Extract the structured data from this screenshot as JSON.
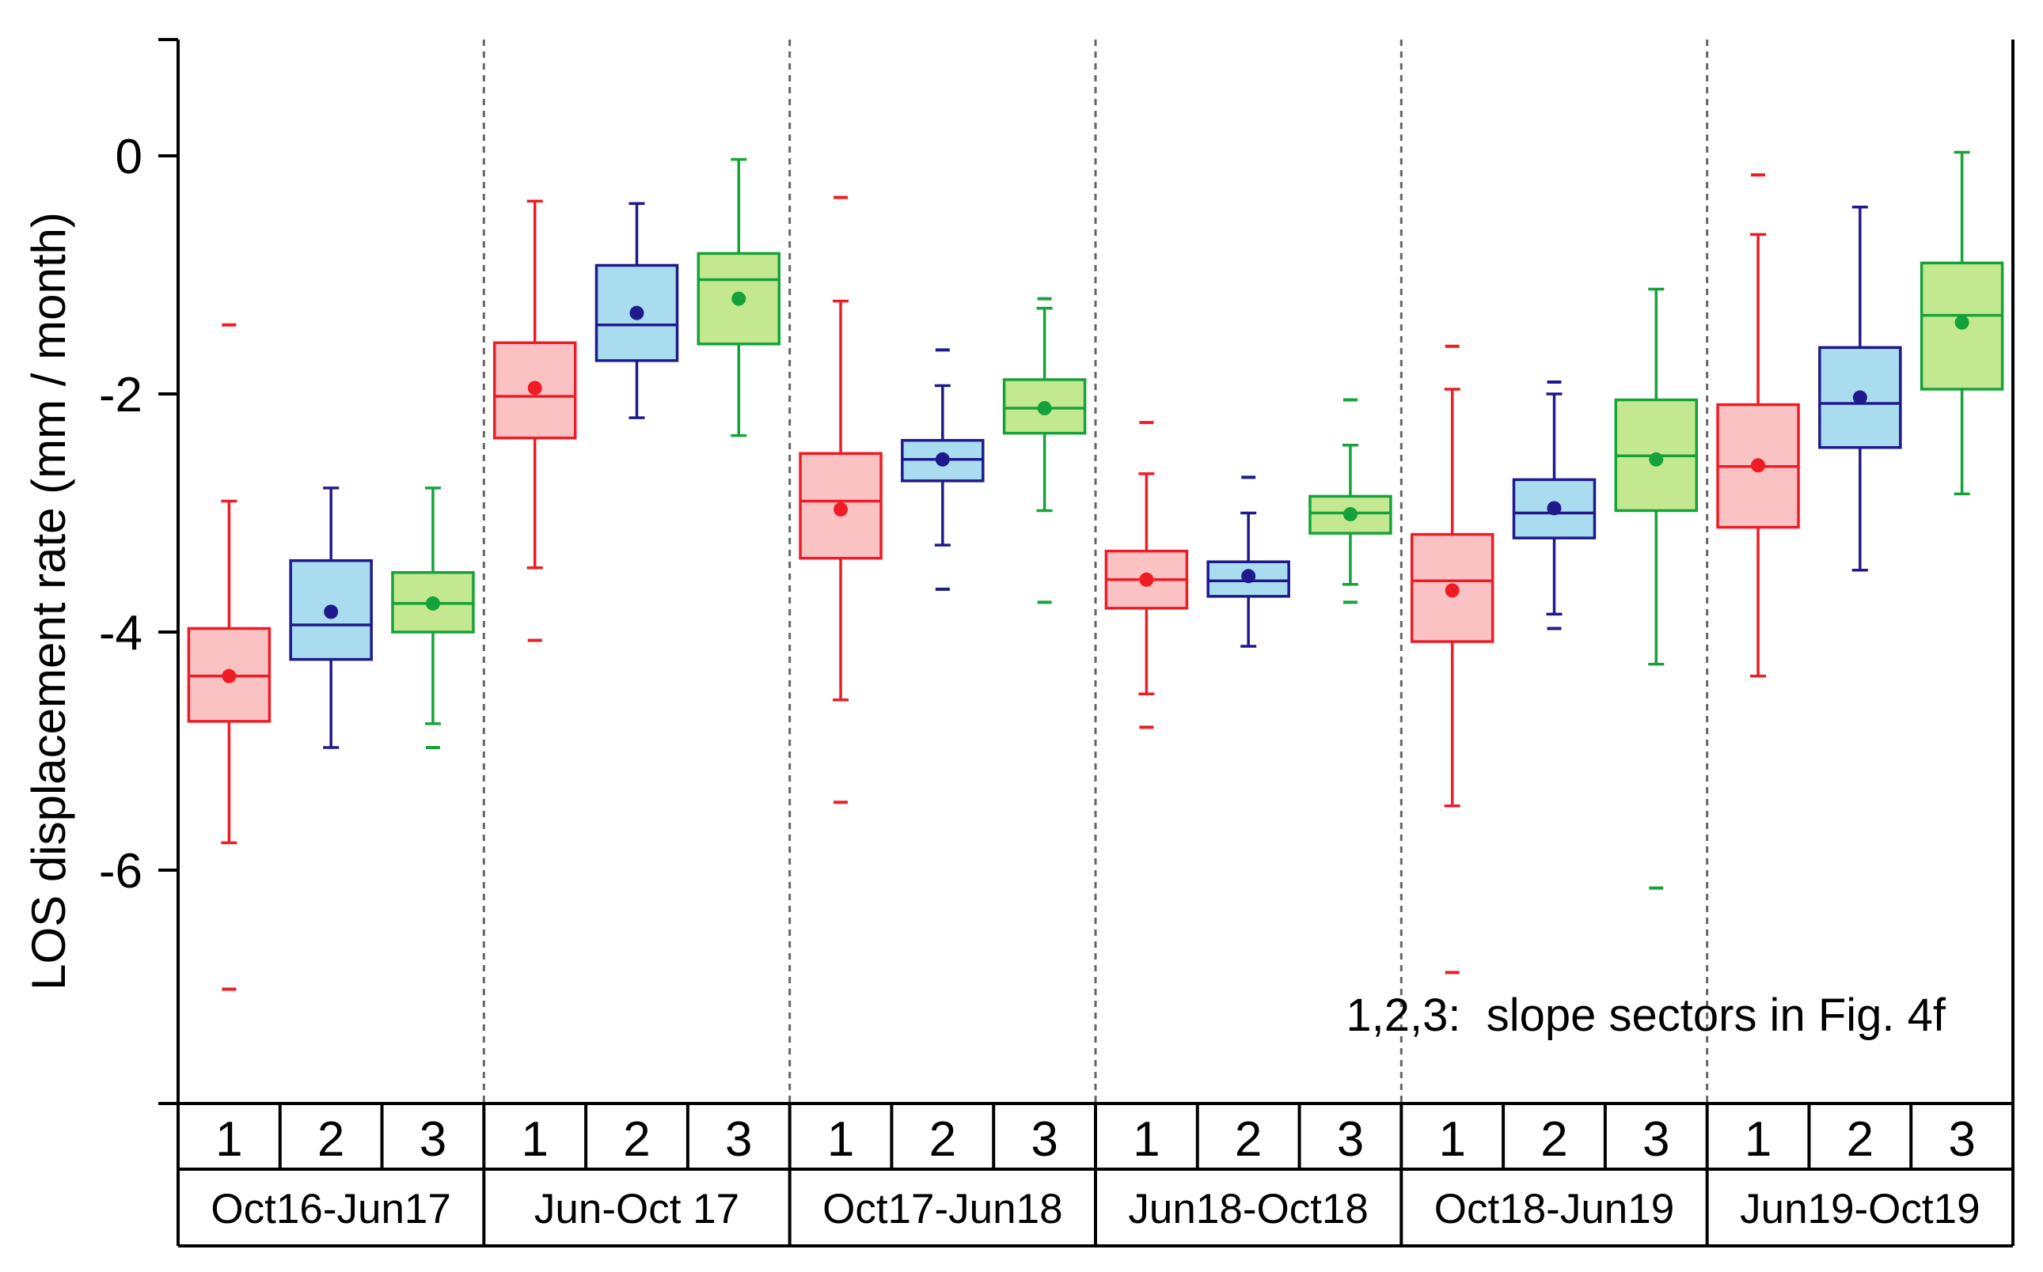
{
  "chart_data": {
    "type": "boxplot",
    "title": "",
    "xlabel": "",
    "ylabel": "LOS displacement rate (mm / month)",
    "ylim": [
      -8,
      1
    ],
    "yticks": [
      0,
      -2,
      -4,
      -6
    ],
    "ytick_labels": [
      "0",
      "-2",
      "-4",
      "-6"
    ],
    "annotation": "1,2,3:  slope sectors in Fig. 4f",
    "categories": [
      "1",
      "2",
      "3"
    ],
    "series": [
      {
        "name": "1",
        "fill": "#fbc2c4",
        "stroke": "#ee1c24"
      },
      {
        "name": "2",
        "fill": "#a8dcee",
        "stroke": "#1f1a8c"
      },
      {
        "name": "3",
        "fill": "#c4e88f",
        "stroke": "#16a23a"
      }
    ],
    "groups": [
      {
        "label": "Oct16-Jun17",
        "boxes": [
          {
            "min": -5.77,
            "q1": -4.75,
            "median": -4.37,
            "q3": -3.97,
            "max": -2.9,
            "mean": -4.37,
            "outliers": [
              -1.42,
              -7.0
            ]
          },
          {
            "min": -4.97,
            "q1": -4.23,
            "median": -3.94,
            "q3": -3.4,
            "max": -2.79,
            "mean": -3.83,
            "outliers": []
          },
          {
            "min": -4.77,
            "q1": -4.0,
            "median": -3.76,
            "q3": -3.5,
            "max": -2.79,
            "mean": -3.76,
            "outliers": [
              -4.97
            ]
          }
        ]
      },
      {
        "label": "Jun-Oct 17",
        "boxes": [
          {
            "min": -3.46,
            "q1": -2.37,
            "median": -2.02,
            "q3": -1.57,
            "max": -0.38,
            "mean": -1.95,
            "outliers": [
              -4.07
            ]
          },
          {
            "min": -2.2,
            "q1": -1.72,
            "median": -1.42,
            "q3": -0.92,
            "max": -0.4,
            "mean": -1.32,
            "outliers": []
          },
          {
            "min": -2.35,
            "q1": -1.58,
            "median": -1.04,
            "q3": -0.82,
            "max": -0.03,
            "mean": -1.2,
            "outliers": []
          }
        ]
      },
      {
        "label": "Oct17-Jun18",
        "boxes": [
          {
            "min": -4.57,
            "q1": -3.38,
            "median": -2.9,
            "q3": -2.5,
            "max": -1.22,
            "mean": -2.97,
            "outliers": [
              -0.35,
              -5.43
            ]
          },
          {
            "min": -3.27,
            "q1": -2.73,
            "median": -2.55,
            "q3": -2.39,
            "max": -1.93,
            "mean": -2.55,
            "outliers": [
              -1.63,
              -3.64
            ]
          },
          {
            "min": -2.98,
            "q1": -2.33,
            "median": -2.12,
            "q3": -1.88,
            "max": -1.28,
            "mean": -2.12,
            "outliers": [
              -1.2,
              -3.75
            ]
          }
        ]
      },
      {
        "label": "Jun18-Oct18",
        "boxes": [
          {
            "min": -4.52,
            "q1": -3.8,
            "median": -3.56,
            "q3": -3.32,
            "max": -2.67,
            "mean": -3.56,
            "outliers": [
              -2.24,
              -4.8
            ]
          },
          {
            "min": -4.12,
            "q1": -3.7,
            "median": -3.57,
            "q3": -3.41,
            "max": -3.0,
            "mean": -3.53,
            "outliers": [
              -2.7
            ]
          },
          {
            "min": -3.6,
            "q1": -3.17,
            "median": -3.0,
            "q3": -2.86,
            "max": -2.43,
            "mean": -3.01,
            "outliers": [
              -2.05,
              -3.75
            ]
          }
        ]
      },
      {
        "label": "Oct18-Jun19",
        "boxes": [
          {
            "min": -5.46,
            "q1": -4.08,
            "median": -3.57,
            "q3": -3.18,
            "max": -1.96,
            "mean": -3.65,
            "outliers": [
              -1.6,
              -6.86
            ]
          },
          {
            "min": -3.85,
            "q1": -3.21,
            "median": -3.0,
            "q3": -2.72,
            "max": -2.0,
            "mean": -2.96,
            "outliers": [
              -1.9,
              -3.97
            ]
          },
          {
            "min": -4.27,
            "q1": -2.98,
            "median": -2.52,
            "q3": -2.05,
            "max": -1.12,
            "mean": -2.55,
            "outliers": [
              -6.15
            ]
          }
        ]
      },
      {
        "label": "Jun19-Oct19",
        "boxes": [
          {
            "min": -4.37,
            "q1": -3.12,
            "median": -2.61,
            "q3": -2.09,
            "max": -0.66,
            "mean": -2.6,
            "outliers": [
              -0.16
            ]
          },
          {
            "min": -3.48,
            "q1": -2.45,
            "median": -2.08,
            "q3": -1.61,
            "max": -0.43,
            "mean": -2.03,
            "outliers": []
          },
          {
            "min": -2.84,
            "q1": -1.96,
            "median": -1.34,
            "q3": -0.9,
            "max": 0.03,
            "mean": -1.4,
            "outliers": []
          }
        ]
      }
    ]
  }
}
